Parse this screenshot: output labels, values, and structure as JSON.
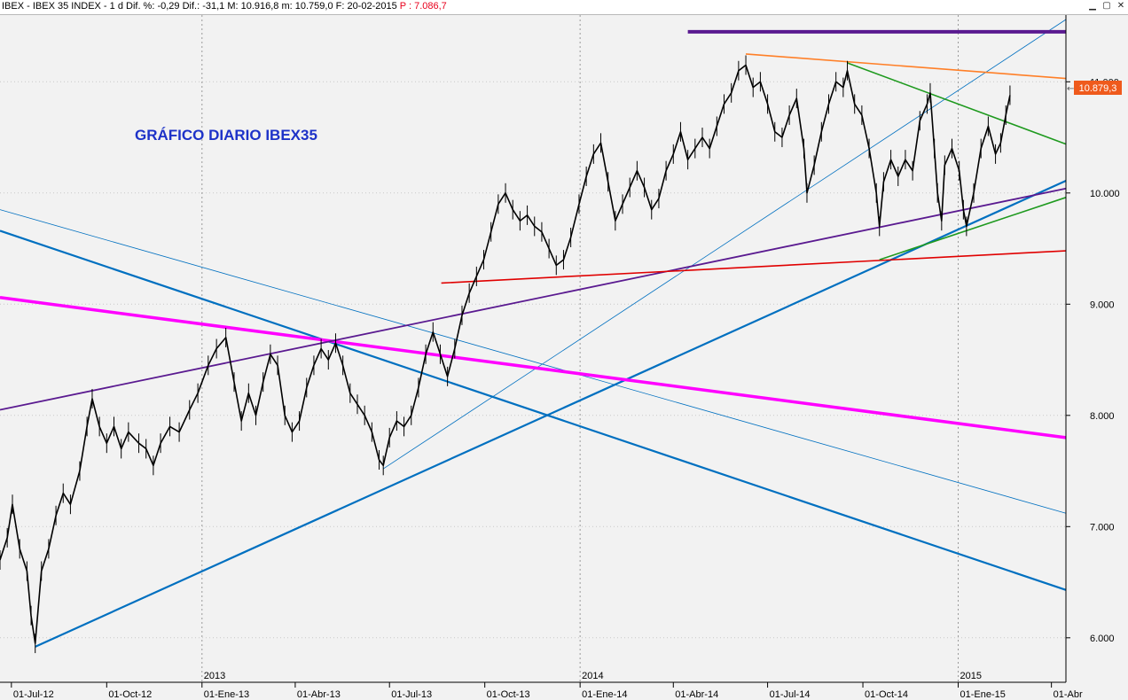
{
  "window": {
    "title": "IBEX - IBEX 35 INDEX - 1 d Dif. %: -0,29 Dif.: -31,1 M: 10.916,8 m: 10.759,0 F: 20-02-2015",
    "p_label": "P : 7.086,7",
    "minimize_icon": "minimize-icon",
    "maximize_icon": "maximize-icon",
    "close_icon": "close-icon"
  },
  "chart_data": {
    "type": "line",
    "title": "GRÁFICO DIARIO IBEX35",
    "ylim": [
      5600,
      11600
    ],
    "x_range": [
      "2012-06-20",
      "2015-04-15"
    ],
    "y_ticks": [
      6000,
      7000,
      8000,
      9000,
      10000,
      11000
    ],
    "y_tick_labels": [
      "6.000",
      "7.000",
      "8.000",
      "9.000",
      "10.000",
      "11.000"
    ],
    "x_ticks": [
      {
        "date": "2012-07-01",
        "label": "01-Jul-12"
      },
      {
        "date": "2012-10-01",
        "label": "01-Oct-12"
      },
      {
        "date": "2013-01-01",
        "label": "01-Ene-13"
      },
      {
        "date": "2013-04-01",
        "label": "01-Abr-13"
      },
      {
        "date": "2013-07-01",
        "label": "01-Jul-13"
      },
      {
        "date": "2013-10-01",
        "label": "01-Oct-13"
      },
      {
        "date": "2014-01-01",
        "label": "01-Ene-14"
      },
      {
        "date": "2014-04-01",
        "label": "01-Abr-14"
      },
      {
        "date": "2014-07-01",
        "label": "01-Jul-14"
      },
      {
        "date": "2014-10-01",
        "label": "01-Oct-14"
      },
      {
        "date": "2015-01-01",
        "label": "01-Ene-15"
      },
      {
        "date": "2015-04-01",
        "label": "01-Abr"
      }
    ],
    "year_markers": [
      {
        "date": "2013-01-01",
        "label": "2013"
      },
      {
        "date": "2014-01-01",
        "label": "2014"
      },
      {
        "date": "2015-01-01",
        "label": "2015"
      }
    ],
    "last_price": 10879.3,
    "last_price_label": "10.879,3",
    "price_series": [
      {
        "date": "2012-06-20",
        "value": 6700
      },
      {
        "date": "2012-06-27",
        "value": 6900
      },
      {
        "date": "2012-07-02",
        "value": 7200
      },
      {
        "date": "2012-07-09",
        "value": 6800
      },
      {
        "date": "2012-07-16",
        "value": 6600
      },
      {
        "date": "2012-07-20",
        "value": 6200
      },
      {
        "date": "2012-07-24",
        "value": 5950
      },
      {
        "date": "2012-07-30",
        "value": 6600
      },
      {
        "date": "2012-08-06",
        "value": 6800
      },
      {
        "date": "2012-08-13",
        "value": 7100
      },
      {
        "date": "2012-08-20",
        "value": 7300
      },
      {
        "date": "2012-08-27",
        "value": 7200
      },
      {
        "date": "2012-09-05",
        "value": 7500
      },
      {
        "date": "2012-09-12",
        "value": 7900
      },
      {
        "date": "2012-09-17",
        "value": 8150
      },
      {
        "date": "2012-09-24",
        "value": 7900
      },
      {
        "date": "2012-10-01",
        "value": 7750
      },
      {
        "date": "2012-10-08",
        "value": 7900
      },
      {
        "date": "2012-10-15",
        "value": 7700
      },
      {
        "date": "2012-10-22",
        "value": 7850
      },
      {
        "date": "2012-11-01",
        "value": 7750
      },
      {
        "date": "2012-11-08",
        "value": 7700
      },
      {
        "date": "2012-11-15",
        "value": 7550
      },
      {
        "date": "2012-11-22",
        "value": 7750
      },
      {
        "date": "2012-12-01",
        "value": 7900
      },
      {
        "date": "2012-12-10",
        "value": 7850
      },
      {
        "date": "2012-12-20",
        "value": 8050
      },
      {
        "date": "2012-12-28",
        "value": 8200
      },
      {
        "date": "2013-01-07",
        "value": 8450
      },
      {
        "date": "2013-01-15",
        "value": 8600
      },
      {
        "date": "2013-01-24",
        "value": 8700
      },
      {
        "date": "2013-02-01",
        "value": 8300
      },
      {
        "date": "2013-02-08",
        "value": 7950
      },
      {
        "date": "2013-02-15",
        "value": 8200
      },
      {
        "date": "2013-02-22",
        "value": 8000
      },
      {
        "date": "2013-03-01",
        "value": 8300
      },
      {
        "date": "2013-03-08",
        "value": 8550
      },
      {
        "date": "2013-03-15",
        "value": 8450
      },
      {
        "date": "2013-03-22",
        "value": 8000
      },
      {
        "date": "2013-03-29",
        "value": 7850
      },
      {
        "date": "2013-04-05",
        "value": 7950
      },
      {
        "date": "2013-04-12",
        "value": 8250
      },
      {
        "date": "2013-04-19",
        "value": 8450
      },
      {
        "date": "2013-04-26",
        "value": 8600
      },
      {
        "date": "2013-05-03",
        "value": 8500
      },
      {
        "date": "2013-05-10",
        "value": 8650
      },
      {
        "date": "2013-05-17",
        "value": 8450
      },
      {
        "date": "2013-05-24",
        "value": 8200
      },
      {
        "date": "2013-05-31",
        "value": 8100
      },
      {
        "date": "2013-06-07",
        "value": 8000
      },
      {
        "date": "2013-06-14",
        "value": 7850
      },
      {
        "date": "2013-06-21",
        "value": 7600
      },
      {
        "date": "2013-06-25",
        "value": 7550
      },
      {
        "date": "2013-07-01",
        "value": 7800
      },
      {
        "date": "2013-07-08",
        "value": 7950
      },
      {
        "date": "2013-07-15",
        "value": 7900
      },
      {
        "date": "2013-07-22",
        "value": 8000
      },
      {
        "date": "2013-07-29",
        "value": 8250
      },
      {
        "date": "2013-08-05",
        "value": 8550
      },
      {
        "date": "2013-08-12",
        "value": 8750
      },
      {
        "date": "2013-08-19",
        "value": 8550
      },
      {
        "date": "2013-08-26",
        "value": 8350
      },
      {
        "date": "2013-09-02",
        "value": 8600
      },
      {
        "date": "2013-09-09",
        "value": 8900
      },
      {
        "date": "2013-09-16",
        "value": 9100
      },
      {
        "date": "2013-09-23",
        "value": 9250
      },
      {
        "date": "2013-09-30",
        "value": 9400
      },
      {
        "date": "2013-10-07",
        "value": 9650
      },
      {
        "date": "2013-10-14",
        "value": 9900
      },
      {
        "date": "2013-10-21",
        "value": 10000
      },
      {
        "date": "2013-10-28",
        "value": 9850
      },
      {
        "date": "2013-11-04",
        "value": 9750
      },
      {
        "date": "2013-11-11",
        "value": 9800
      },
      {
        "date": "2013-11-18",
        "value": 9700
      },
      {
        "date": "2013-11-25",
        "value": 9650
      },
      {
        "date": "2013-12-02",
        "value": 9500
      },
      {
        "date": "2013-12-09",
        "value": 9350
      },
      {
        "date": "2013-12-16",
        "value": 9400
      },
      {
        "date": "2013-12-23",
        "value": 9600
      },
      {
        "date": "2013-12-31",
        "value": 9900
      },
      {
        "date": "2014-01-07",
        "value": 10150
      },
      {
        "date": "2014-01-14",
        "value": 10350
      },
      {
        "date": "2014-01-21",
        "value": 10450
      },
      {
        "date": "2014-01-28",
        "value": 10100
      },
      {
        "date": "2014-02-04",
        "value": 9750
      },
      {
        "date": "2014-02-11",
        "value": 9900
      },
      {
        "date": "2014-02-18",
        "value": 10050
      },
      {
        "date": "2014-02-25",
        "value": 10200
      },
      {
        "date": "2014-03-04",
        "value": 10050
      },
      {
        "date": "2014-03-11",
        "value": 9850
      },
      {
        "date": "2014-03-18",
        "value": 9950
      },
      {
        "date": "2014-03-25",
        "value": 10200
      },
      {
        "date": "2014-04-01",
        "value": 10350
      },
      {
        "date": "2014-04-08",
        "value": 10550
      },
      {
        "date": "2014-04-15",
        "value": 10300
      },
      {
        "date": "2014-04-22",
        "value": 10400
      },
      {
        "date": "2014-04-29",
        "value": 10500
      },
      {
        "date": "2014-05-06",
        "value": 10400
      },
      {
        "date": "2014-05-13",
        "value": 10600
      },
      {
        "date": "2014-05-20",
        "value": 10800
      },
      {
        "date": "2014-05-27",
        "value": 10900
      },
      {
        "date": "2014-06-03",
        "value": 11100
      },
      {
        "date": "2014-06-10",
        "value": 11150
      },
      {
        "date": "2014-06-17",
        "value": 10950
      },
      {
        "date": "2014-06-24",
        "value": 11000
      },
      {
        "date": "2014-07-01",
        "value": 10800
      },
      {
        "date": "2014-07-08",
        "value": 10550
      },
      {
        "date": "2014-07-15",
        "value": 10500
      },
      {
        "date": "2014-07-22",
        "value": 10700
      },
      {
        "date": "2014-07-29",
        "value": 10850
      },
      {
        "date": "2014-08-05",
        "value": 10400
      },
      {
        "date": "2014-08-08",
        "value": 10000
      },
      {
        "date": "2014-08-15",
        "value": 10250
      },
      {
        "date": "2014-08-22",
        "value": 10550
      },
      {
        "date": "2014-08-29",
        "value": 10800
      },
      {
        "date": "2014-09-05",
        "value": 11000
      },
      {
        "date": "2014-09-12",
        "value": 10950
      },
      {
        "date": "2014-09-16",
        "value": 11100
      },
      {
        "date": "2014-09-23",
        "value": 10800
      },
      {
        "date": "2014-09-30",
        "value": 10700
      },
      {
        "date": "2014-10-07",
        "value": 10400
      },
      {
        "date": "2014-10-14",
        "value": 10000
      },
      {
        "date": "2014-10-17",
        "value": 9700
      },
      {
        "date": "2014-10-21",
        "value": 10100
      },
      {
        "date": "2014-10-28",
        "value": 10300
      },
      {
        "date": "2014-11-04",
        "value": 10150
      },
      {
        "date": "2014-11-11",
        "value": 10300
      },
      {
        "date": "2014-11-18",
        "value": 10200
      },
      {
        "date": "2014-11-25",
        "value": 10650
      },
      {
        "date": "2014-12-02",
        "value": 10800
      },
      {
        "date": "2014-12-05",
        "value": 10900
      },
      {
        "date": "2014-12-09",
        "value": 10400
      },
      {
        "date": "2014-12-12",
        "value": 10000
      },
      {
        "date": "2014-12-16",
        "value": 9750
      },
      {
        "date": "2014-12-19",
        "value": 10250
      },
      {
        "date": "2014-12-26",
        "value": 10400
      },
      {
        "date": "2015-01-02",
        "value": 10200
      },
      {
        "date": "2015-01-06",
        "value": 9850
      },
      {
        "date": "2015-01-09",
        "value": 9700
      },
      {
        "date": "2015-01-16",
        "value": 10000
      },
      {
        "date": "2015-01-23",
        "value": 10400
      },
      {
        "date": "2015-01-30",
        "value": 10600
      },
      {
        "date": "2015-02-06",
        "value": 10350
      },
      {
        "date": "2015-02-11",
        "value": 10450
      },
      {
        "date": "2015-02-16",
        "value": 10700
      },
      {
        "date": "2015-02-20",
        "value": 10879
      }
    ],
    "trendlines": [
      {
        "color": "#0070c0",
        "width": 2.2,
        "from": {
          "date": "2012-07-24",
          "value": 5920
        },
        "to": {
          "date": "2015-04-15",
          "value": 10110
        }
      },
      {
        "color": "#0070c0",
        "width": 2.2,
        "from": {
          "date": "2012-06-20",
          "value": 9660
        },
        "to": {
          "date": "2015-04-15",
          "value": 6430
        }
      },
      {
        "color": "#0070c0",
        "width": 0.8,
        "from": {
          "date": "2012-06-20",
          "value": 9850
        },
        "to": {
          "date": "2015-04-15",
          "value": 7120
        }
      },
      {
        "color": "#0070c0",
        "width": 0.8,
        "from": {
          "date": "2013-06-25",
          "value": 7520
        },
        "to": {
          "date": "2015-04-15",
          "value": 11560
        }
      },
      {
        "color": "#ff00ff",
        "width": 3.5,
        "from": {
          "date": "2012-06-20",
          "value": 9060
        },
        "to": {
          "date": "2015-04-15",
          "value": 7800
        }
      },
      {
        "color": "#5a1a90",
        "width": 1.8,
        "from": {
          "date": "2012-06-20",
          "value": 8050
        },
        "to": {
          "date": "2015-04-15",
          "value": 10040
        }
      },
      {
        "color": "#e00000",
        "width": 1.6,
        "from": {
          "date": "2013-08-20",
          "value": 9190
        },
        "to": {
          "date": "2015-04-15",
          "value": 9480
        }
      },
      {
        "color": "#ff7f27",
        "width": 1.6,
        "from": {
          "date": "2014-06-10",
          "value": 11250
        },
        "to": {
          "date": "2015-04-15",
          "value": 11030
        }
      },
      {
        "color": "#1f9a1f",
        "width": 1.6,
        "from": {
          "date": "2014-09-16",
          "value": 11170
        },
        "to": {
          "date": "2015-04-15",
          "value": 10440
        }
      },
      {
        "color": "#1f9a1f",
        "width": 1.6,
        "from": {
          "date": "2014-10-17",
          "value": 9400
        },
        "to": {
          "date": "2015-04-15",
          "value": 9960
        }
      },
      {
        "color": "#5a1a90",
        "width": 4,
        "from": {
          "date": "2014-04-15",
          "value": 11450
        },
        "to": {
          "date": "2015-04-15",
          "value": 11450
        }
      }
    ]
  }
}
